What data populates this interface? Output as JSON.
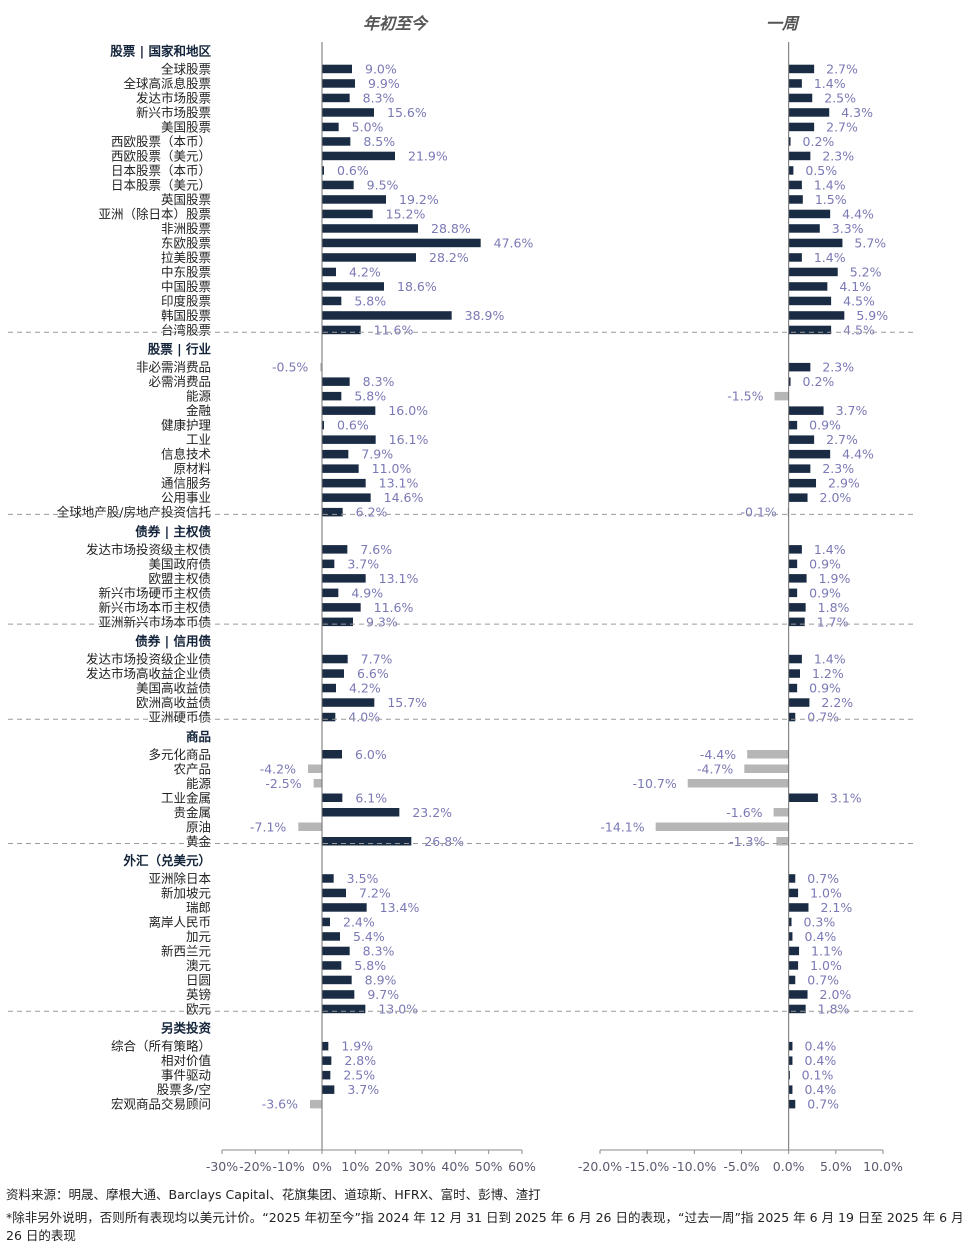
{
  "chart_data": {
    "type": "bar",
    "orientation": "horizontal",
    "panels": [
      {
        "title": "年初至今",
        "xlim": [
          -30,
          60
        ],
        "ticks": [
          "-30%",
          "-20%",
          "-10%",
          "0%",
          "10%",
          "20%",
          "30%",
          "40%",
          "50%",
          "60%"
        ]
      },
      {
        "title": "一周",
        "xlim": [
          -20,
          10
        ],
        "ticks": [
          "-20.0%",
          "-15.0%",
          "-10.0%",
          "-5.0%",
          "0.0%",
          "5.0%",
          "10.0%"
        ]
      }
    ],
    "groups": [
      {
        "title": "股票 | 国家和地区",
        "rows": [
          {
            "label": "全球股票",
            "ytd": 9.0,
            "ytd_label": "9.0%",
            "week": 2.7,
            "week_label": "2.7%"
          },
          {
            "label": "全球高派息股票",
            "ytd": 9.9,
            "ytd_label": "9.9%",
            "week": 1.4,
            "week_label": "1.4%"
          },
          {
            "label": "发达市场股票",
            "ytd": 8.3,
            "ytd_label": "8.3%",
            "week": 2.5,
            "week_label": "2.5%"
          },
          {
            "label": "新兴市场股票",
            "ytd": 15.6,
            "ytd_label": "15.6%",
            "week": 4.3,
            "week_label": "4.3%"
          },
          {
            "label": "美国股票",
            "ytd": 5.0,
            "ytd_label": "5.0%",
            "week": 2.7,
            "week_label": "2.7%"
          },
          {
            "label": "西欧股票（本币）",
            "ytd": 8.5,
            "ytd_label": "8.5%",
            "week": 0.2,
            "week_label": "0.2%"
          },
          {
            "label": "西欧股票（美元）",
            "ytd": 21.9,
            "ytd_label": "21.9%",
            "week": 2.3,
            "week_label": "2.3%"
          },
          {
            "label": "日本股票（本币）",
            "ytd": 0.6,
            "ytd_label": "0.6%",
            "week": 0.5,
            "week_label": "0.5%"
          },
          {
            "label": "日本股票（美元）",
            "ytd": 9.5,
            "ytd_label": "9.5%",
            "week": 1.4,
            "week_label": "1.4%"
          },
          {
            "label": "英国股票",
            "ytd": 19.2,
            "ytd_label": "19.2%",
            "week": 1.5,
            "week_label": "1.5%"
          },
          {
            "label": "亚洲（除日本）股票",
            "ytd": 15.2,
            "ytd_label": "15.2%",
            "week": 4.4,
            "week_label": "4.4%"
          },
          {
            "label": "非洲股票",
            "ytd": 28.8,
            "ytd_label": "28.8%",
            "week": 3.3,
            "week_label": "3.3%"
          },
          {
            "label": "东欧股票",
            "ytd": 47.6,
            "ytd_label": "47.6%",
            "week": 5.7,
            "week_label": "5.7%"
          },
          {
            "label": "拉美股票",
            "ytd": 28.2,
            "ytd_label": "28.2%",
            "week": 1.4,
            "week_label": "1.4%"
          },
          {
            "label": "中东股票",
            "ytd": 4.2,
            "ytd_label": "4.2%",
            "week": 5.2,
            "week_label": "5.2%"
          },
          {
            "label": "中国股票",
            "ytd": 18.6,
            "ytd_label": "18.6%",
            "week": 4.1,
            "week_label": "4.1%"
          },
          {
            "label": "印度股票",
            "ytd": 5.8,
            "ytd_label": "5.8%",
            "week": 4.5,
            "week_label": "4.5%"
          },
          {
            "label": "韩国股票",
            "ytd": 38.9,
            "ytd_label": "38.9%",
            "week": 5.9,
            "week_label": "5.9%"
          },
          {
            "label": "台湾股票",
            "ytd": 11.6,
            "ytd_label": "11.6%",
            "week": 4.5,
            "week_label": "4.5%"
          }
        ]
      },
      {
        "title": "股票 | 行业",
        "rows": [
          {
            "label": "非必需消费品",
            "ytd": -0.5,
            "ytd_label": "-0.5%",
            "week": 2.3,
            "week_label": "2.3%"
          },
          {
            "label": "必需消费品",
            "ytd": 8.3,
            "ytd_label": "8.3%",
            "week": 0.2,
            "week_label": "0.2%"
          },
          {
            "label": "能源",
            "ytd": 5.8,
            "ytd_label": "5.8%",
            "week": -1.5,
            "week_label": "-1.5%"
          },
          {
            "label": "金融",
            "ytd": 16.0,
            "ytd_label": "16.0%",
            "week": 3.7,
            "week_label": "3.7%"
          },
          {
            "label": "健康护理",
            "ytd": 0.6,
            "ytd_label": "0.6%",
            "week": 0.9,
            "week_label": "0.9%"
          },
          {
            "label": "工业",
            "ytd": 16.1,
            "ytd_label": "16.1%",
            "week": 2.7,
            "week_label": "2.7%"
          },
          {
            "label": "信息技术",
            "ytd": 7.9,
            "ytd_label": "7.9%",
            "week": 4.4,
            "week_label": "4.4%"
          },
          {
            "label": "原材料",
            "ytd": 11.0,
            "ytd_label": "11.0%",
            "week": 2.3,
            "week_label": "2.3%"
          },
          {
            "label": "通信服务",
            "ytd": 13.1,
            "ytd_label": "13.1%",
            "week": 2.9,
            "week_label": "2.9%"
          },
          {
            "label": "公用事业",
            "ytd": 14.6,
            "ytd_label": "14.6%",
            "week": 2.0,
            "week_label": "2.0%"
          },
          {
            "label": "全球地产股/房地产投资信托",
            "ytd": 6.2,
            "ytd_label": "6.2%",
            "week": -0.1,
            "week_label": "-0.1%"
          }
        ]
      },
      {
        "title": "债券 | 主权债",
        "rows": [
          {
            "label": "发达市场投资级主权债",
            "ytd": 7.6,
            "ytd_label": "7.6%",
            "week": 1.4,
            "week_label": "1.4%"
          },
          {
            "label": "美国政府债",
            "ytd": 3.7,
            "ytd_label": "3.7%",
            "week": 0.9,
            "week_label": "0.9%"
          },
          {
            "label": "欧盟主权债",
            "ytd": 13.1,
            "ytd_label": "13.1%",
            "week": 1.9,
            "week_label": "1.9%"
          },
          {
            "label": "新兴市场硬币主权债",
            "ytd": 4.9,
            "ytd_label": "4.9%",
            "week": 0.9,
            "week_label": "0.9%"
          },
          {
            "label": "新兴市场本币主权债",
            "ytd": 11.6,
            "ytd_label": "11.6%",
            "week": 1.8,
            "week_label": "1.8%"
          },
          {
            "label": "亚洲新兴市场本币债",
            "ytd": 9.3,
            "ytd_label": "9.3%",
            "week": 1.7,
            "week_label": "1.7%"
          }
        ]
      },
      {
        "title": "债券 | 信用债",
        "rows": [
          {
            "label": "发达市场投资级企业债",
            "ytd": 7.7,
            "ytd_label": "7.7%",
            "week": 1.4,
            "week_label": "1.4%"
          },
          {
            "label": "发达市场高收益企业债",
            "ytd": 6.6,
            "ytd_label": "6.6%",
            "week": 1.2,
            "week_label": "1.2%"
          },
          {
            "label": "美国高收益债",
            "ytd": 4.2,
            "ytd_label": "4.2%",
            "week": 0.9,
            "week_label": "0.9%"
          },
          {
            "label": "欧洲高收益债",
            "ytd": 15.7,
            "ytd_label": "15.7%",
            "week": 2.2,
            "week_label": "2.2%"
          },
          {
            "label": "亚洲硬币债",
            "ytd": 4.0,
            "ytd_label": "4.0%",
            "week": 0.7,
            "week_label": "0.7%"
          }
        ]
      },
      {
        "title": "商品",
        "rows": [
          {
            "label": "多元化商品",
            "ytd": 6.0,
            "ytd_label": "6.0%",
            "week": -4.4,
            "week_label": "-4.4%"
          },
          {
            "label": "农产品",
            "ytd": -4.2,
            "ytd_label": "-4.2%",
            "week": -4.7,
            "week_label": "-4.7%"
          },
          {
            "label": "能源",
            "ytd": -2.5,
            "ytd_label": "-2.5%",
            "week": -10.7,
            "week_label": "-10.7%"
          },
          {
            "label": "工业金属",
            "ytd": 6.1,
            "ytd_label": "6.1%",
            "week": 3.1,
            "week_label": "3.1%"
          },
          {
            "label": "贵金属",
            "ytd": 23.2,
            "ytd_label": "23.2%",
            "week": -1.6,
            "week_label": "-1.6%"
          },
          {
            "label": "原油",
            "ytd": -7.1,
            "ytd_label": "-7.1%",
            "week": -14.1,
            "week_label": "-14.1%"
          },
          {
            "label": "黄金",
            "ytd": 26.8,
            "ytd_label": "26.8%",
            "week": -1.3,
            "week_label": "-1.3%"
          }
        ]
      },
      {
        "title": "外汇（兑美元）",
        "rows": [
          {
            "label": "亚洲除日本",
            "ytd": 3.5,
            "ytd_label": "3.5%",
            "week": 0.7,
            "week_label": "0.7%"
          },
          {
            "label": "新加坡元",
            "ytd": 7.2,
            "ytd_label": "7.2%",
            "week": 1.0,
            "week_label": "1.0%"
          },
          {
            "label": "瑞郎",
            "ytd": 13.4,
            "ytd_label": "13.4%",
            "week": 2.1,
            "week_label": "2.1%"
          },
          {
            "label": "离岸人民币",
            "ytd": 2.4,
            "ytd_label": "2.4%",
            "week": 0.3,
            "week_label": "0.3%"
          },
          {
            "label": "加元",
            "ytd": 5.4,
            "ytd_label": "5.4%",
            "week": 0.4,
            "week_label": "0.4%"
          },
          {
            "label": "新西兰元",
            "ytd": 8.3,
            "ytd_label": "8.3%",
            "week": 1.1,
            "week_label": "1.1%"
          },
          {
            "label": "澳元",
            "ytd": 5.8,
            "ytd_label": "5.8%",
            "week": 1.0,
            "week_label": "1.0%"
          },
          {
            "label": "日圆",
            "ytd": 8.9,
            "ytd_label": "8.9%",
            "week": 0.7,
            "week_label": "0.7%"
          },
          {
            "label": "英镑",
            "ytd": 9.7,
            "ytd_label": "9.7%",
            "week": 2.0,
            "week_label": "2.0%"
          },
          {
            "label": "欧元",
            "ytd": 13.0,
            "ytd_label": "13.0%",
            "week": 1.8,
            "week_label": "1.8%"
          }
        ]
      },
      {
        "title": "另类投资",
        "rows": [
          {
            "label": "综合（所有策略）",
            "ytd": 1.9,
            "ytd_label": "1.9%",
            "week": 0.4,
            "week_label": "0.4%"
          },
          {
            "label": "相对价值",
            "ytd": 2.8,
            "ytd_label": "2.8%",
            "week": 0.4,
            "week_label": "0.4%"
          },
          {
            "label": "事件驱动",
            "ytd": 2.5,
            "ytd_label": "2.5%",
            "week": 0.1,
            "week_label": "0.1%"
          },
          {
            "label": "股票多/空",
            "ytd": 3.7,
            "ytd_label": "3.7%",
            "week": 0.4,
            "week_label": "0.4%"
          },
          {
            "label": "宏观商品交易顾问",
            "ytd": -3.6,
            "ytd_label": "-3.6%",
            "week": 0.7,
            "week_label": "0.7%"
          }
        ]
      }
    ],
    "colors": {
      "positive": "#1a2b44",
      "negative": "#b6b6b6",
      "value_label": "#7a79b5",
      "divider": "#9a9a9a"
    }
  },
  "footnotes": {
    "source": "资料来源：明晟、摩根大通、Barclays Capital、花旗集团、道琼斯、HFRX、富时、彭博、渣打",
    "note": "*除非另外说明，否则所有表现均以美元计价。“2025 年初至今”指 2024 年 12 月 31 日到 2025 年 6 月 26 日的表现，“过去一周”指 2025 年 6 月 19 日至 2025 年 6 月 26 日的表现"
  }
}
